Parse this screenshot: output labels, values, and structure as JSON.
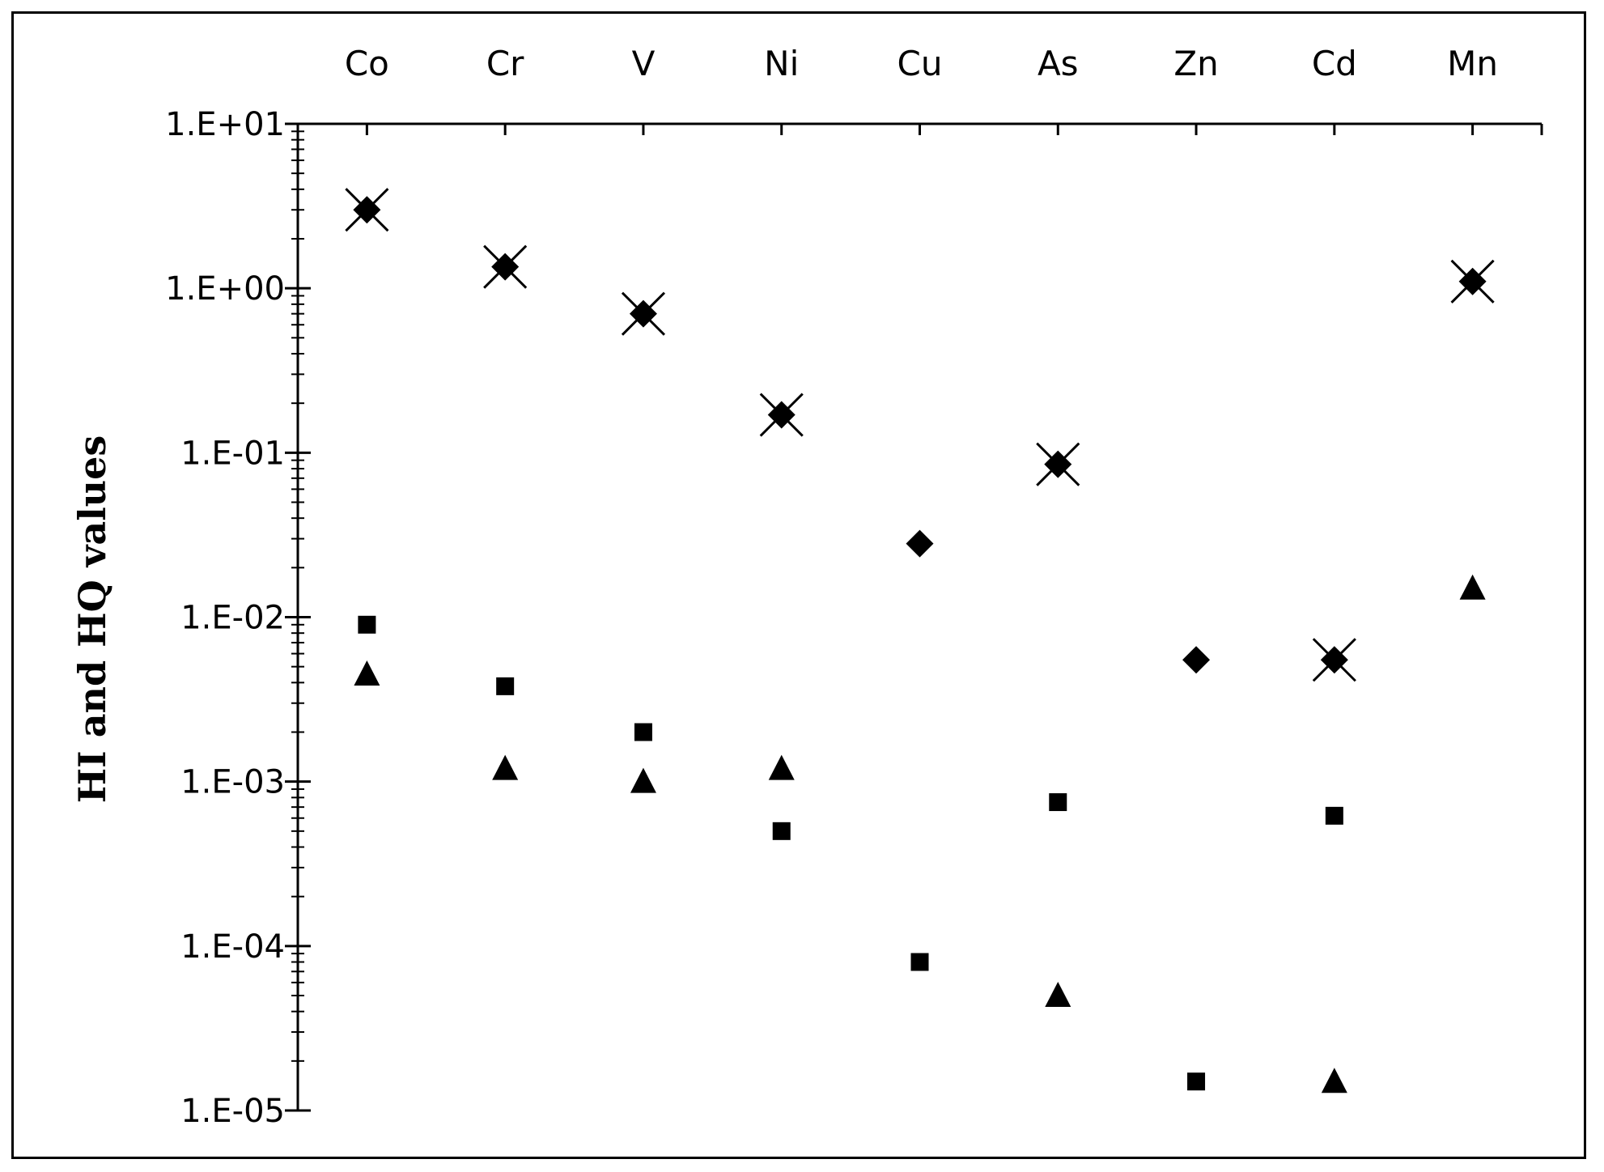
{
  "chart_data": {
    "type": "scatter",
    "title": "",
    "xlabel": "",
    "ylabel": "HI and HQ values",
    "y_scale": "log",
    "ylim": [
      1e-05,
      10
    ],
    "y_ticks": [
      "1.E+01",
      "1.E+00",
      "1.E-01",
      "1.E-02",
      "1.E-03",
      "1.E-04",
      "1.E-05"
    ],
    "x_axis_position": "top",
    "grid": false,
    "legend": "none",
    "categories": [
      "Co",
      "Cr",
      "V",
      "Ni",
      "Cu",
      "As",
      "Zn",
      "Cd",
      "Mn"
    ],
    "series": [
      {
        "marker": "diamond",
        "color": "#000000",
        "values": [
          3.0,
          1.35,
          0.7,
          0.17,
          0.028,
          0.085,
          0.0055,
          0.0055,
          1.1
        ]
      },
      {
        "marker": "cross",
        "color": "#000000",
        "values": [
          3.0,
          1.35,
          0.7,
          0.17,
          null,
          0.085,
          null,
          0.0055,
          1.1
        ]
      },
      {
        "marker": "square",
        "color": "#000000",
        "values": [
          0.009,
          0.0038,
          0.002,
          0.0005,
          8e-05,
          0.00075,
          1.5e-05,
          0.00062,
          null
        ]
      },
      {
        "marker": "triangle",
        "color": "#000000",
        "values": [
          0.0045,
          0.0012,
          0.001,
          0.0012,
          null,
          5e-05,
          null,
          1.5e-05,
          0.015
        ]
      }
    ]
  }
}
